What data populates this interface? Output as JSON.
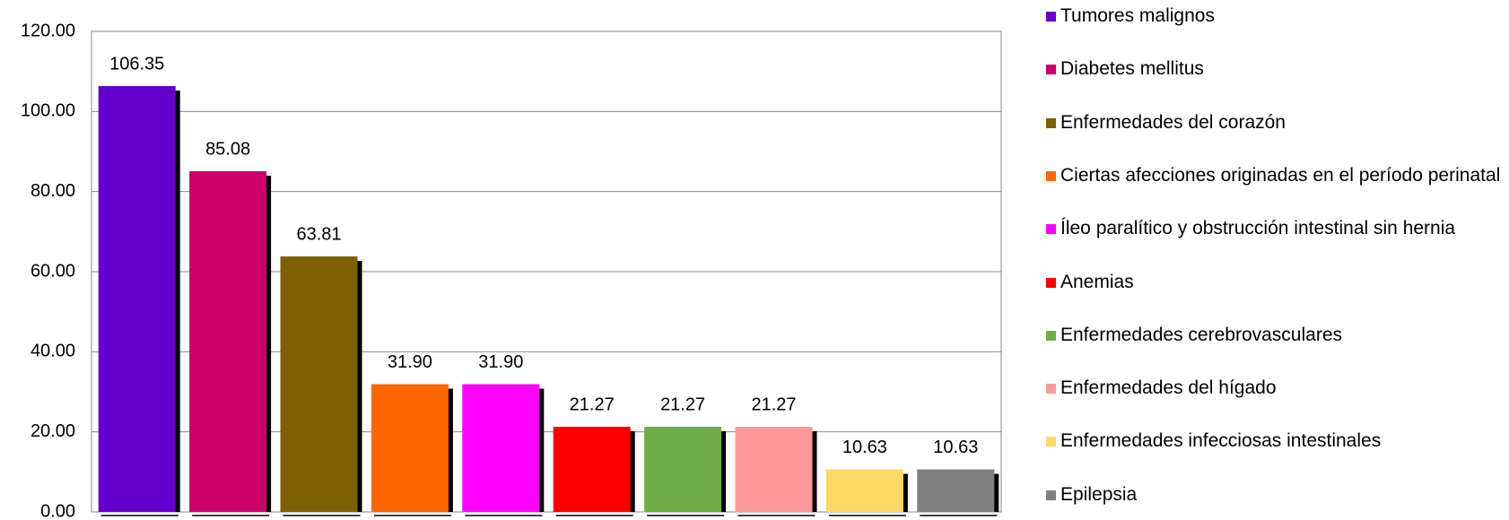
{
  "chart_data": {
    "type": "bar",
    "categories": [
      "Tumores malignos",
      "Diabetes mellitus",
      "Enfermedades del corazón",
      "Ciertas afecciones originadas en el período perinatal",
      "Íleo paralítico y obstrucción intestinal sin hernia",
      "Anemias",
      "Enfermedades cerebrovasculares",
      "Enfermedades del hígado",
      "Enfermedades infecciosas intestinales",
      "Epilepsia"
    ],
    "values": [
      106.35,
      85.08,
      63.81,
      31.9,
      31.9,
      21.27,
      21.27,
      21.27,
      10.63,
      10.63
    ],
    "value_labels": [
      "106.35",
      "85.08",
      "63.81",
      "31.90",
      "31.90",
      "21.27",
      "21.27",
      "21.27",
      "10.63",
      "10.63"
    ],
    "colors": [
      "#6600cc",
      "#cc0066",
      "#7f6000",
      "#ff6600",
      "#ff00ff",
      "#ff0000",
      "#70ad47",
      "#ff9999",
      "#ffd966",
      "#808080"
    ],
    "ylim": [
      0,
      120
    ],
    "yticks": [
      {
        "value": 0,
        "label": "0.00"
      },
      {
        "value": 20,
        "label": "20.00"
      },
      {
        "value": 40,
        "label": "40.00"
      },
      {
        "value": 60,
        "label": "60.00"
      },
      {
        "value": 80,
        "label": "80.00"
      },
      {
        "value": 100,
        "label": "100.00"
      },
      {
        "value": 120,
        "label": "120.00"
      }
    ],
    "grid": true
  }
}
